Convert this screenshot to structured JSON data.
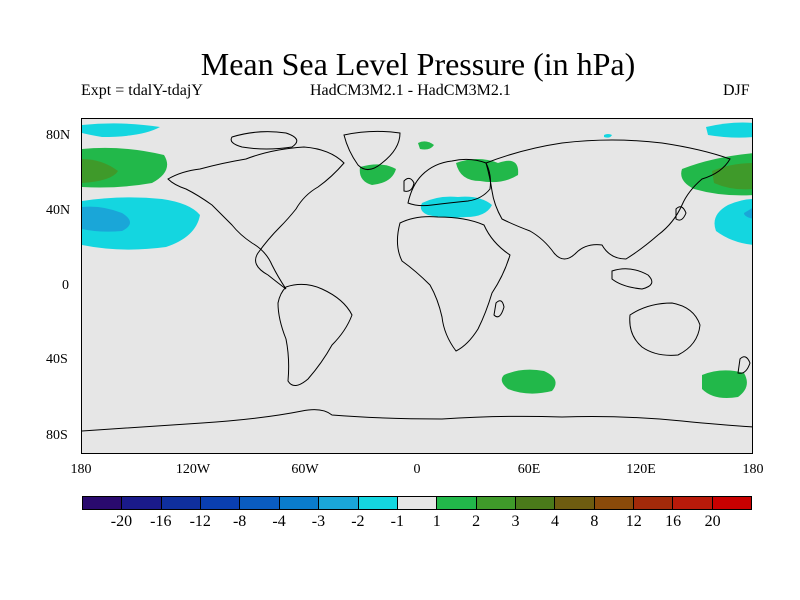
{
  "title": "Mean Sea Level Pressure (in hPa)",
  "subtitle_left": "Expt = tdalY-tdajY",
  "subtitle_center": "HadCM3M2.1 - HadCM3M2.1",
  "subtitle_right": "DJF",
  "lat_labels": [
    "80N",
    "40N",
    "0",
    "40S",
    "80S"
  ],
  "lon_labels": [
    "180",
    "120W",
    "60W",
    "0",
    "60E",
    "120E",
    "180"
  ],
  "colorbar": {
    "labels": [
      "-20",
      "-16",
      "-12",
      "-8",
      "-4",
      "-3",
      "-2",
      "-1",
      "1",
      "2",
      "3",
      "4",
      "8",
      "12",
      "16",
      "20"
    ],
    "colors": [
      "#2a0a6e",
      "#1a1a8a",
      "#0f2f9e",
      "#0a3fb0",
      "#0a5cc0",
      "#0a7ccc",
      "#1aa6d8",
      "#14d6e0",
      "#e6e6e6",
      "#22b84a",
      "#3f9a2a",
      "#4a7a1a",
      "#6e5c10",
      "#8a4a0a",
      "#a22a0a",
      "#b81a0a",
      "#c80000"
    ]
  },
  "map": {
    "projection": "cylindrical equidistant",
    "land_outline_color": "#000000",
    "background_color": "#e6e6e6"
  }
}
